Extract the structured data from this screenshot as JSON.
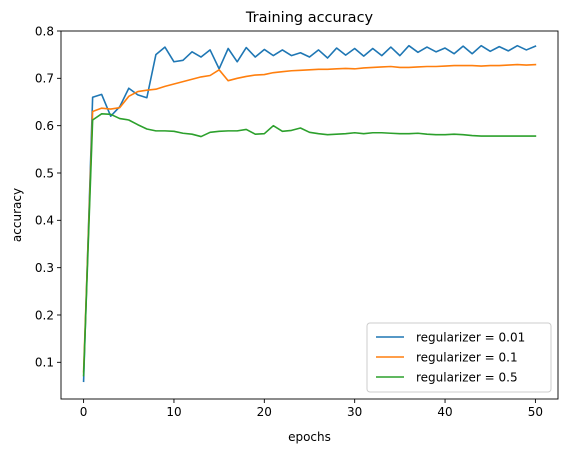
{
  "chart_data": {
    "type": "line",
    "title": "Training accuracy",
    "xlabel": "epochs",
    "ylabel": "accuracy",
    "xlim": [
      -2.5,
      52.5
    ],
    "ylim": [
      0.0225,
      0.8
    ],
    "xticks": [
      0,
      10,
      20,
      30,
      40,
      50
    ],
    "yticks": [
      0.1,
      0.2,
      0.3,
      0.4,
      0.5,
      0.6,
      0.7,
      0.8
    ],
    "grid": false,
    "legend_position": "lower-right",
    "x": [
      0,
      1,
      2,
      3,
      4,
      5,
      6,
      7,
      8,
      9,
      10,
      11,
      12,
      13,
      14,
      15,
      16,
      17,
      18,
      19,
      20,
      21,
      22,
      23,
      24,
      25,
      26,
      27,
      28,
      29,
      30,
      31,
      32,
      33,
      34,
      35,
      36,
      37,
      38,
      39,
      40,
      41,
      42,
      43,
      44,
      45,
      46,
      47,
      48,
      49,
      50
    ],
    "series": [
      {
        "name": "regularizer = 0.01",
        "color": "#1f77b4",
        "values": [
          0.06,
          0.66,
          0.666,
          0.62,
          0.64,
          0.679,
          0.665,
          0.659,
          0.75,
          0.766,
          0.735,
          0.738,
          0.756,
          0.745,
          0.76,
          0.72,
          0.763,
          0.735,
          0.765,
          0.745,
          0.761,
          0.748,
          0.76,
          0.748,
          0.754,
          0.745,
          0.76,
          0.743,
          0.764,
          0.749,
          0.763,
          0.747,
          0.763,
          0.748,
          0.766,
          0.748,
          0.769,
          0.755,
          0.766,
          0.756,
          0.764,
          0.752,
          0.768,
          0.752,
          0.769,
          0.757,
          0.767,
          0.758,
          0.769,
          0.76,
          0.768
        ]
      },
      {
        "name": "regularizer = 0.1",
        "color": "#ff7f0e",
        "values": [
          0.08,
          0.63,
          0.637,
          0.635,
          0.638,
          0.662,
          0.672,
          0.675,
          0.677,
          0.683,
          0.688,
          0.693,
          0.698,
          0.703,
          0.706,
          0.718,
          0.695,
          0.7,
          0.704,
          0.707,
          0.708,
          0.712,
          0.714,
          0.716,
          0.717,
          0.718,
          0.719,
          0.719,
          0.72,
          0.721,
          0.72,
          0.722,
          0.723,
          0.724,
          0.725,
          0.723,
          0.723,
          0.724,
          0.725,
          0.725,
          0.726,
          0.727,
          0.727,
          0.727,
          0.726,
          0.727,
          0.727,
          0.728,
          0.729,
          0.728,
          0.729
        ]
      },
      {
        "name": "regularizer = 0.5",
        "color": "#2ca02c",
        "values": [
          0.072,
          0.612,
          0.625,
          0.624,
          0.615,
          0.612,
          0.602,
          0.593,
          0.589,
          0.589,
          0.588,
          0.584,
          0.582,
          0.577,
          0.586,
          0.588,
          0.589,
          0.589,
          0.592,
          0.582,
          0.583,
          0.6,
          0.588,
          0.59,
          0.595,
          0.586,
          0.583,
          0.581,
          0.582,
          0.583,
          0.585,
          0.583,
          0.585,
          0.585,
          0.584,
          0.583,
          0.583,
          0.584,
          0.582,
          0.581,
          0.581,
          0.582,
          0.581,
          0.579,
          0.578,
          0.578,
          0.578,
          0.578,
          0.578,
          0.578,
          0.578
        ]
      }
    ]
  }
}
